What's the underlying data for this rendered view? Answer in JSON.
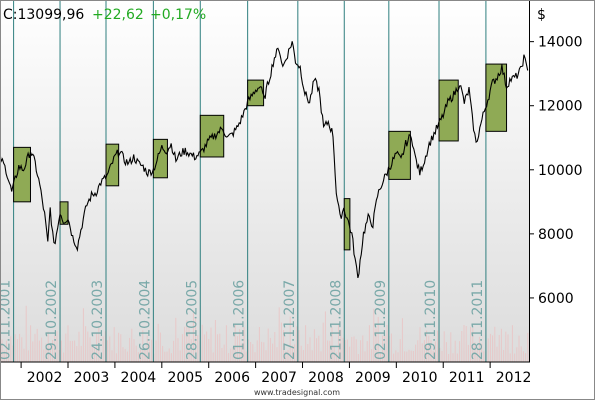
{
  "header": {
    "last": "C:13099,96",
    "change": "+22,62",
    "change_pct": "+0,17%"
  },
  "footer": {
    "credit": "www.tradesignal.com"
  },
  "colors": {
    "up": "#22aa22",
    "price_line": "#000000",
    "box_fill": "#8faa55",
    "vline": "#2f7f7f",
    "axis_text": "#000000",
    "date_label": "#7aa9a9",
    "volume": "#e8c8c8"
  },
  "chart_data": {
    "type": "line",
    "title": "",
    "xlabel": "",
    "ylabel": "$",
    "x_range": [
      2001.55,
      2012.85
    ],
    "ylim": [
      4000,
      15300
    ],
    "y_ticks": [
      6000,
      8000,
      10000,
      12000,
      14000
    ],
    "x_tick_labels": [
      "2002",
      "2003",
      "2004",
      "2005",
      "2006",
      "2007",
      "2008",
      "2009",
      "2010",
      "2011",
      "2012"
    ],
    "year_boundaries": [
      2002,
      2003,
      2004,
      2005,
      2006,
      2007,
      2008,
      2009,
      2010,
      2011,
      2012
    ],
    "grid": false,
    "price_path": [
      [
        2001.55,
        10400
      ],
      [
        2001.68,
        10000
      ],
      [
        2001.8,
        9300
      ],
      [
        2001.95,
        10100
      ],
      [
        2002.05,
        10000
      ],
      [
        2002.2,
        10600
      ],
      [
        2002.3,
        10200
      ],
      [
        2002.4,
        9500
      ],
      [
        2002.5,
        8600
      ],
      [
        2002.57,
        7700
      ],
      [
        2002.62,
        8800
      ],
      [
        2002.7,
        7600
      ],
      [
        2002.78,
        8200
      ],
      [
        2002.83,
        8700
      ],
      [
        2002.9,
        8400
      ],
      [
        2003.0,
        8500
      ],
      [
        2003.1,
        7900
      ],
      [
        2003.2,
        7600
      ],
      [
        2003.3,
        8300
      ],
      [
        2003.4,
        8900
      ],
      [
        2003.5,
        9200
      ],
      [
        2003.6,
        9300
      ],
      [
        2003.7,
        9600
      ],
      [
        2003.83,
        9800
      ],
      [
        2004.0,
        10400
      ],
      [
        2004.1,
        10600
      ],
      [
        2004.2,
        10300
      ],
      [
        2004.3,
        10200
      ],
      [
        2004.4,
        10400
      ],
      [
        2004.5,
        10200
      ],
      [
        2004.6,
        10100
      ],
      [
        2004.7,
        9900
      ],
      [
        2004.82,
        10000
      ],
      [
        2005.0,
        10700
      ],
      [
        2005.1,
        10600
      ],
      [
        2005.2,
        10800
      ],
      [
        2005.3,
        10300
      ],
      [
        2005.4,
        10500
      ],
      [
        2005.5,
        10600
      ],
      [
        2005.6,
        10500
      ],
      [
        2005.7,
        10400
      ],
      [
        2005.82,
        10500
      ],
      [
        2006.0,
        10900
      ],
      [
        2006.15,
        11100
      ],
      [
        2006.3,
        11300
      ],
      [
        2006.4,
        11000
      ],
      [
        2006.5,
        11100
      ],
      [
        2006.6,
        11300
      ],
      [
        2006.7,
        11600
      ],
      [
        2006.83,
        12100
      ],
      [
        2007.0,
        12500
      ],
      [
        2007.1,
        12600
      ],
      [
        2007.18,
        12200
      ],
      [
        2007.3,
        12900
      ],
      [
        2007.4,
        13500
      ],
      [
        2007.5,
        13800
      ],
      [
        2007.58,
        13200
      ],
      [
        2007.68,
        13600
      ],
      [
        2007.78,
        14000
      ],
      [
        2007.85,
        13400
      ],
      [
        2007.95,
        13200
      ],
      [
        2008.05,
        12400
      ],
      [
        2008.15,
        12100
      ],
      [
        2008.25,
        12800
      ],
      [
        2008.35,
        12500
      ],
      [
        2008.45,
        11300
      ],
      [
        2008.55,
        11500
      ],
      [
        2008.65,
        11100
      ],
      [
        2008.72,
        9300
      ],
      [
        2008.8,
        8500
      ],
      [
        2008.88,
        8800
      ],
      [
        2008.95,
        8500
      ],
      [
        2009.05,
        8000
      ],
      [
        2009.12,
        7200
      ],
      [
        2009.18,
        6600
      ],
      [
        2009.3,
        8000
      ],
      [
        2009.4,
        8500
      ],
      [
        2009.5,
        8300
      ],
      [
        2009.6,
        9200
      ],
      [
        2009.7,
        9600
      ],
      [
        2009.83,
        10000
      ],
      [
        2010.0,
        10500
      ],
      [
        2010.1,
        10300
      ],
      [
        2010.2,
        10800
      ],
      [
        2010.32,
        11100
      ],
      [
        2010.4,
        10400
      ],
      [
        2010.5,
        9900
      ],
      [
        2010.6,
        10300
      ],
      [
        2010.7,
        10800
      ],
      [
        2010.83,
        11200
      ],
      [
        2011.0,
        11700
      ],
      [
        2011.1,
        12100
      ],
      [
        2011.25,
        12400
      ],
      [
        2011.35,
        12700
      ],
      [
        2011.45,
        12100
      ],
      [
        2011.55,
        12500
      ],
      [
        2011.62,
        11600
      ],
      [
        2011.7,
        10800
      ],
      [
        2011.78,
        11300
      ],
      [
        2011.85,
        11700
      ],
      [
        2011.95,
        12200
      ],
      [
        2012.05,
        12700
      ],
      [
        2012.15,
        12900
      ],
      [
        2012.25,
        13200
      ],
      [
        2012.35,
        12600
      ],
      [
        2012.42,
        12800
      ],
      [
        2012.55,
        12900
      ],
      [
        2012.65,
        13100
      ],
      [
        2012.72,
        13500
      ],
      [
        2012.8,
        13100
      ]
    ],
    "seasonal_windows": [
      {
        "label": "02.11.2001",
        "start": 2001.84,
        "end": 2002.2,
        "low": 9000,
        "high": 10700
      },
      {
        "label": "29.10.2002",
        "start": 2002.83,
        "end": 2003.0,
        "low": 8300,
        "high": 9000
      },
      {
        "label": "24.10.2003",
        "start": 2003.81,
        "end": 2004.08,
        "low": 9500,
        "high": 10800
      },
      {
        "label": "26.10.2004",
        "start": 2004.82,
        "end": 2005.12,
        "low": 9750,
        "high": 10950
      },
      {
        "label": "28.10.2005",
        "start": 2005.82,
        "end": 2006.32,
        "low": 10400,
        "high": 11700
      },
      {
        "label": "01.11.2006",
        "start": 2006.83,
        "end": 2007.17,
        "low": 12000,
        "high": 12800
      },
      {
        "label": "27.11.2007",
        "start": 2007.9,
        "end": 2007.9,
        "low": 0,
        "high": 0
      },
      {
        "label": "21.11.2008",
        "start": 2008.89,
        "end": 2009.01,
        "low": 7500,
        "high": 9100
      },
      {
        "label": "02.11.2009",
        "start": 2009.84,
        "end": 2010.3,
        "low": 9700,
        "high": 11200
      },
      {
        "label": "29.11.2010",
        "start": 2010.91,
        "end": 2011.32,
        "low": 10900,
        "high": 12800
      },
      {
        "label": "28.11.2011",
        "start": 2011.91,
        "end": 2012.35,
        "low": 11200,
        "high": 13300
      }
    ]
  }
}
